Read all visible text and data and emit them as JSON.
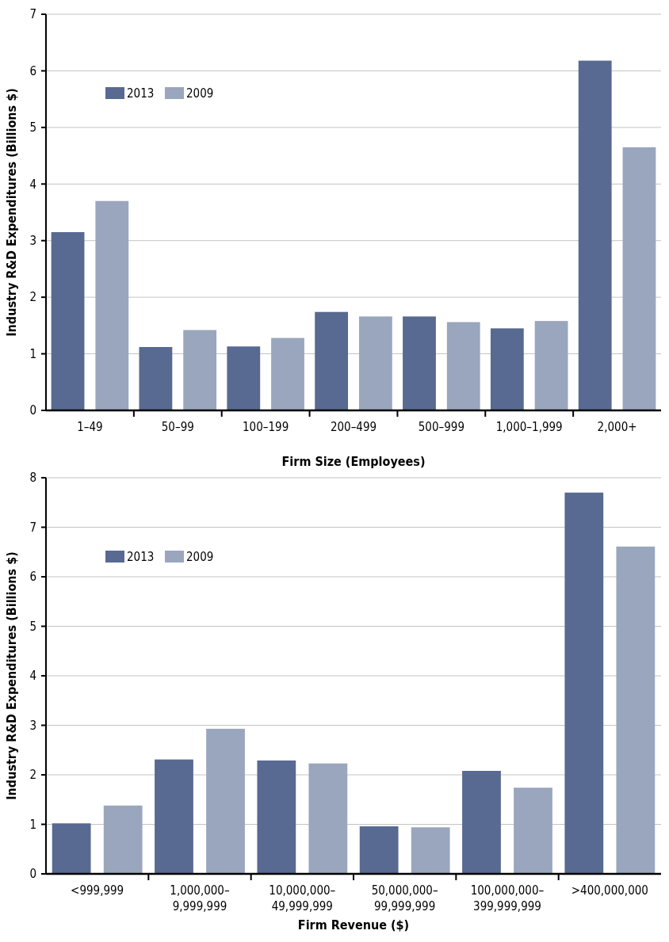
{
  "chart_data": [
    {
      "type": "bar",
      "xlabel": "Firm Size (Employees)",
      "ylabel": "Industry R&D Expenditures (Billions $)",
      "categories": [
        "1–49",
        "50–99",
        "100–199",
        "200–499",
        "500–999",
        "1,000–1,999",
        "2,000+"
      ],
      "series": [
        {
          "name": "2013",
          "color": "#586a91",
          "values": [
            3.15,
            1.12,
            1.13,
            1.74,
            1.66,
            1.45,
            6.18
          ]
        },
        {
          "name": "2009",
          "color": "#9aa6be",
          "values": [
            3.7,
            1.42,
            1.28,
            1.66,
            1.56,
            1.58,
            4.65
          ]
        }
      ],
      "ylim": [
        0,
        7
      ],
      "yticks": [
        0,
        1,
        2,
        3,
        4,
        5,
        6,
        7
      ],
      "grid": "y",
      "legend": "top left"
    },
    {
      "type": "bar",
      "xlabel": "Firm Revenue ($)",
      "ylabel": "Industry R&D Expenditures (Billions $)",
      "categories": [
        "<999,999",
        "1,000,000–\n9,999,999",
        "10,000,000–\n49,999,999",
        "50,000,000–\n99,999,999",
        "100,000,000–\n399,999,999",
        ">400,000,000"
      ],
      "series": [
        {
          "name": "2013",
          "color": "#586a91",
          "values": [
            1.02,
            2.31,
            2.29,
            0.96,
            2.08,
            7.7
          ]
        },
        {
          "name": "2009",
          "color": "#9aa6be",
          "values": [
            1.38,
            2.93,
            2.23,
            0.94,
            1.74,
            6.61
          ]
        }
      ],
      "ylim": [
        0,
        8
      ],
      "yticks": [
        0,
        1,
        2,
        3,
        4,
        5,
        6,
        7,
        8
      ],
      "grid": "y",
      "legend": "top left"
    }
  ]
}
